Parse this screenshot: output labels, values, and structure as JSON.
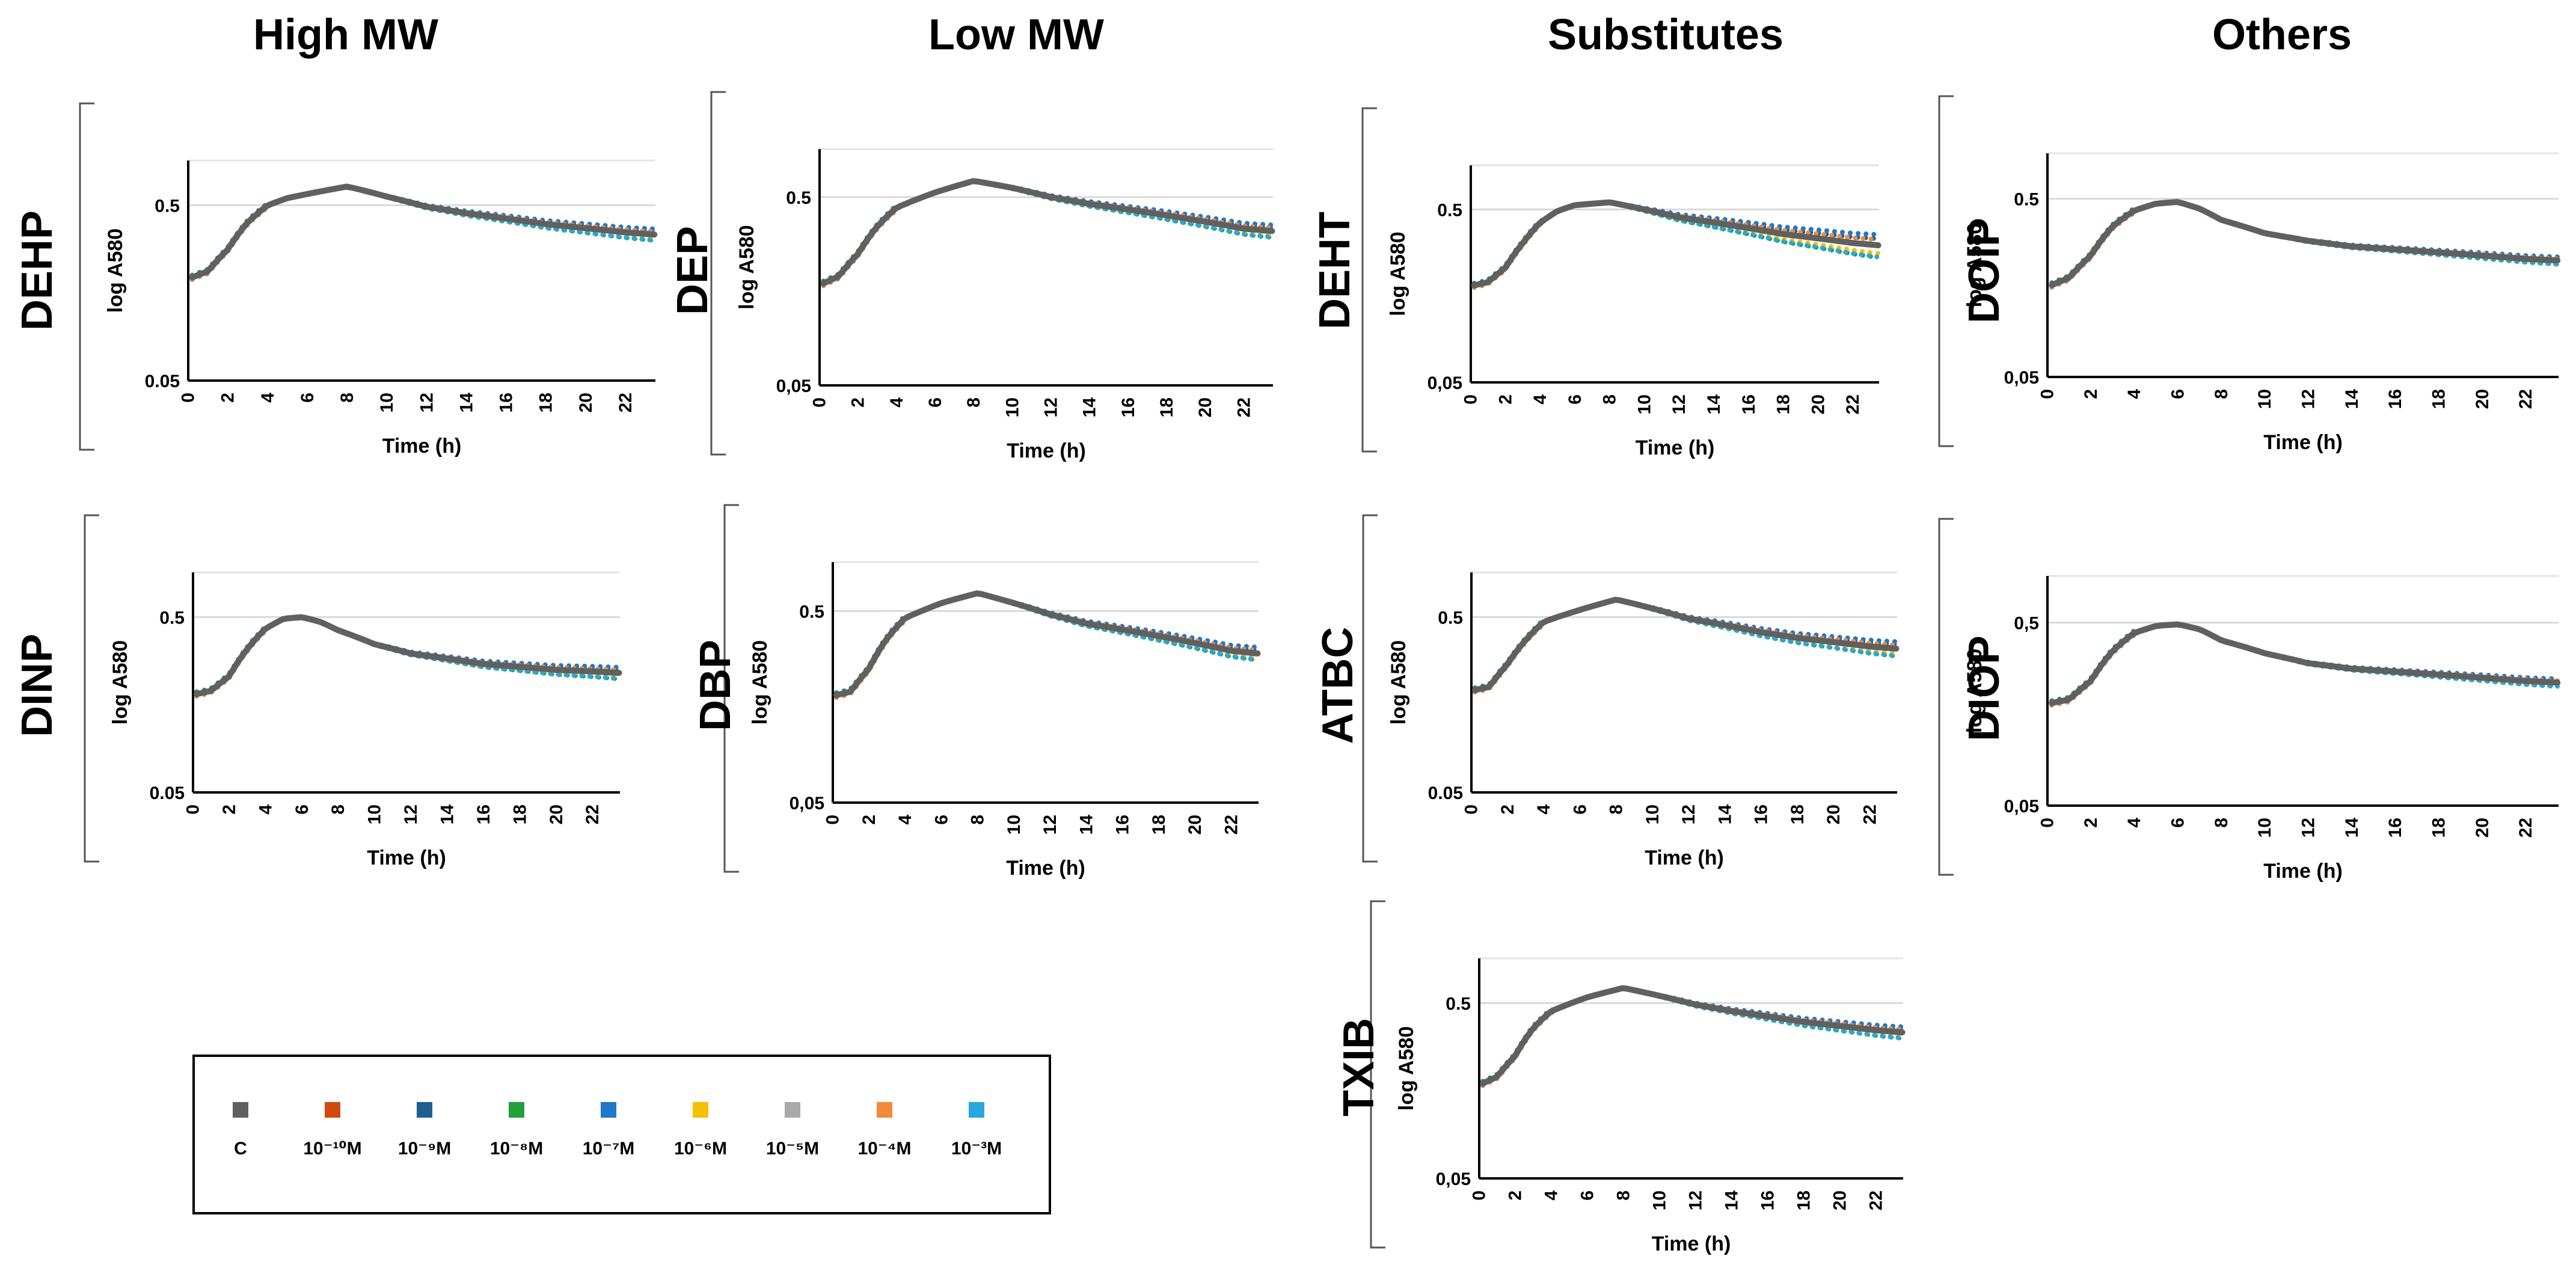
{
  "column_titles": [
    "High MW",
    "Low MW",
    "Substitutes",
    "Others"
  ],
  "legend": {
    "items": [
      {
        "label": "C",
        "color": "#606060"
      },
      {
        "label": "10⁻¹⁰M",
        "color": "#d04a10"
      },
      {
        "label": "10⁻⁹M",
        "color": "#1f5f8f"
      },
      {
        "label": "10⁻⁸M",
        "color": "#22a03c"
      },
      {
        "label": "10⁻⁷M",
        "color": "#1f78c8"
      },
      {
        "label": "10⁻⁶M",
        "color": "#f5c000"
      },
      {
        "label": "10⁻⁵M",
        "color": "#a9a9a9"
      },
      {
        "label": "10⁻⁴M",
        "color": "#f08b3a"
      },
      {
        "label": "10⁻³M",
        "color": "#2aa7e0"
      }
    ]
  },
  "chart_data": [
    {
      "type": "line",
      "name": "DEHP",
      "ylabel": "log A580",
      "xlabel": "Time (h)",
      "xlim": [
        0,
        23.5
      ],
      "xticks": [
        0,
        2,
        4,
        6,
        8,
        10,
        12,
        14,
        16,
        18,
        20,
        22
      ],
      "ylim": [
        0.05,
        0.9
      ],
      "yticks": [
        {
          "v": 0.5,
          "label": "0.5"
        },
        {
          "v": 0.05,
          "label": "0.05"
        }
      ],
      "yscale": "log",
      "curve": [
        [
          0,
          0.19
        ],
        [
          1,
          0.21
        ],
        [
          2,
          0.28
        ],
        [
          3,
          0.4
        ],
        [
          4,
          0.5
        ],
        [
          5,
          0.55
        ],
        [
          6,
          0.58
        ],
        [
          7,
          0.61
        ],
        [
          8,
          0.64
        ],
        [
          10,
          0.56
        ],
        [
          12,
          0.49
        ],
        [
          14,
          0.45
        ],
        [
          16,
          0.42
        ],
        [
          18,
          0.39
        ],
        [
          20,
          0.37
        ],
        [
          22,
          0.35
        ],
        [
          23.5,
          0.34
        ]
      ],
      "spread": 0.08
    },
    {
      "type": "line",
      "name": "DEP",
      "ylabel": "log A580",
      "xlabel": "Time (h)",
      "xlim": [
        0,
        23.5
      ],
      "xticks": [
        0,
        2,
        4,
        6,
        8,
        10,
        12,
        14,
        16,
        18,
        20,
        22
      ],
      "ylim": [
        0.05,
        0.9
      ],
      "yticks": [
        {
          "v": 0.5,
          "label": "0.5"
        },
        {
          "v": 0.05,
          "label": "0,05"
        }
      ],
      "yscale": "log",
      "curve": [
        [
          0,
          0.17
        ],
        [
          1,
          0.19
        ],
        [
          2,
          0.25
        ],
        [
          3,
          0.35
        ],
        [
          4,
          0.44
        ],
        [
          6,
          0.53
        ],
        [
          8,
          0.61
        ],
        [
          10,
          0.56
        ],
        [
          12,
          0.5
        ],
        [
          14,
          0.46
        ],
        [
          16,
          0.43
        ],
        [
          18,
          0.4
        ],
        [
          20,
          0.37
        ],
        [
          22,
          0.34
        ],
        [
          23.5,
          0.33
        ]
      ],
      "spread": 0.08
    },
    {
      "type": "line",
      "name": "DEHT",
      "ylabel": "log A580",
      "xlabel": "Time (h)",
      "xlim": [
        0,
        23.5
      ],
      "xticks": [
        0,
        2,
        4,
        6,
        8,
        10,
        12,
        14,
        16,
        18,
        20,
        22
      ],
      "ylim": [
        0.05,
        0.9
      ],
      "yticks": [
        {
          "v": 0.5,
          "label": "0.5"
        },
        {
          "v": 0.05,
          "label": "0,05"
        }
      ],
      "yscale": "log",
      "curve": [
        [
          0,
          0.18
        ],
        [
          1,
          0.19
        ],
        [
          2,
          0.23
        ],
        [
          3,
          0.32
        ],
        [
          4,
          0.42
        ],
        [
          5,
          0.49
        ],
        [
          6,
          0.53
        ],
        [
          8,
          0.55
        ],
        [
          10,
          0.5
        ],
        [
          12,
          0.45
        ],
        [
          14,
          0.42
        ],
        [
          16,
          0.39
        ],
        [
          18,
          0.36
        ],
        [
          20,
          0.34
        ],
        [
          22,
          0.32
        ],
        [
          23.5,
          0.31
        ]
      ],
      "spread": 0.16
    },
    {
      "type": "line",
      "name": "DOIP",
      "ylabel": "log A580",
      "xlabel": "Time (h)",
      "xlim": [
        0,
        23.5
      ],
      "xticks": [
        0,
        2,
        4,
        6,
        8,
        10,
        12,
        14,
        16,
        18,
        20,
        22
      ],
      "ylim": [
        0.05,
        0.9
      ],
      "yticks": [
        {
          "v": 0.5,
          "label": "0.5"
        },
        {
          "v": 0.05,
          "label": "0,05"
        }
      ],
      "yscale": "log",
      "curve": [
        [
          0,
          0.16
        ],
        [
          1,
          0.18
        ],
        [
          2,
          0.24
        ],
        [
          3,
          0.35
        ],
        [
          4,
          0.43
        ],
        [
          5,
          0.47
        ],
        [
          6,
          0.48
        ],
        [
          7,
          0.44
        ],
        [
          8,
          0.38
        ],
        [
          10,
          0.32
        ],
        [
          12,
          0.29
        ],
        [
          14,
          0.27
        ],
        [
          16,
          0.26
        ],
        [
          18,
          0.25
        ],
        [
          20,
          0.24
        ],
        [
          22,
          0.23
        ],
        [
          23.5,
          0.225
        ]
      ],
      "spread": 0.05
    },
    {
      "type": "line",
      "name": "DINP",
      "ylabel": "log A580",
      "xlabel": "Time (h)",
      "xlim": [
        0,
        23.5
      ],
      "xticks": [
        0,
        2,
        4,
        6,
        8,
        10,
        12,
        14,
        16,
        18,
        20,
        22
      ],
      "ylim": [
        0.05,
        0.9
      ],
      "yticks": [
        {
          "v": 0.5,
          "label": "0.5"
        },
        {
          "v": 0.05,
          "label": "0.05"
        }
      ],
      "yscale": "log",
      "curve": [
        [
          0,
          0.18
        ],
        [
          1,
          0.19
        ],
        [
          2,
          0.23
        ],
        [
          3,
          0.33
        ],
        [
          4,
          0.43
        ],
        [
          5,
          0.49
        ],
        [
          6,
          0.5
        ],
        [
          7,
          0.47
        ],
        [
          8,
          0.42
        ],
        [
          10,
          0.35
        ],
        [
          12,
          0.31
        ],
        [
          14,
          0.29
        ],
        [
          16,
          0.27
        ],
        [
          18,
          0.26
        ],
        [
          20,
          0.25
        ],
        [
          22,
          0.245
        ],
        [
          23.5,
          0.24
        ]
      ],
      "spread": 0.08
    },
    {
      "type": "line",
      "name": "DBP",
      "ylabel": "log A580",
      "xlabel": "Time (h)",
      "xlim": [
        0,
        23.5
      ],
      "xticks": [
        0,
        2,
        4,
        6,
        8,
        10,
        12,
        14,
        16,
        18,
        20,
        22
      ],
      "ylim": [
        0.05,
        0.9
      ],
      "yticks": [
        {
          "v": 0.5,
          "label": "0.5"
        },
        {
          "v": 0.05,
          "label": "0,05"
        }
      ],
      "yscale": "log",
      "curve": [
        [
          0,
          0.18
        ],
        [
          1,
          0.19
        ],
        [
          2,
          0.25
        ],
        [
          3,
          0.36
        ],
        [
          4,
          0.46
        ],
        [
          6,
          0.55
        ],
        [
          8,
          0.62
        ],
        [
          10,
          0.55
        ],
        [
          12,
          0.48
        ],
        [
          14,
          0.43
        ],
        [
          16,
          0.4
        ],
        [
          18,
          0.37
        ],
        [
          20,
          0.34
        ],
        [
          22,
          0.31
        ],
        [
          23.5,
          0.3
        ]
      ],
      "spread": 0.08
    },
    {
      "type": "line",
      "name": "ATBC",
      "ylabel": "log A580",
      "xlabel": "Time (h)",
      "xlim": [
        0,
        23.5
      ],
      "xticks": [
        0,
        2,
        4,
        6,
        8,
        10,
        12,
        14,
        16,
        18,
        20,
        22
      ],
      "ylim": [
        0.05,
        0.9
      ],
      "yticks": [
        {
          "v": 0.5,
          "label": "0.5"
        },
        {
          "v": 0.05,
          "label": "0.05"
        }
      ],
      "yscale": "log",
      "curve": [
        [
          0,
          0.19
        ],
        [
          1,
          0.2
        ],
        [
          2,
          0.27
        ],
        [
          3,
          0.37
        ],
        [
          4,
          0.47
        ],
        [
          6,
          0.55
        ],
        [
          8,
          0.63
        ],
        [
          10,
          0.56
        ],
        [
          12,
          0.49
        ],
        [
          14,
          0.45
        ],
        [
          16,
          0.41
        ],
        [
          18,
          0.38
        ],
        [
          20,
          0.36
        ],
        [
          22,
          0.34
        ],
        [
          23.5,
          0.33
        ]
      ],
      "spread": 0.1
    },
    {
      "type": "line",
      "name": "DIOP",
      "ylabel": "log A580",
      "xlabel": "Time (h)",
      "xlim": [
        0,
        23.5
      ],
      "xticks": [
        0,
        2,
        4,
        6,
        8,
        10,
        12,
        14,
        16,
        18,
        20,
        22
      ],
      "ylim": [
        0.05,
        0.9
      ],
      "yticks": [
        {
          "v": 0.5,
          "label": "0,5"
        },
        {
          "v": 0.05,
          "label": "0,05"
        }
      ],
      "yscale": "log",
      "curve": [
        [
          0,
          0.18
        ],
        [
          1,
          0.19
        ],
        [
          2,
          0.24
        ],
        [
          3,
          0.35
        ],
        [
          4,
          0.44
        ],
        [
          5,
          0.48
        ],
        [
          6,
          0.49
        ],
        [
          7,
          0.46
        ],
        [
          8,
          0.4
        ],
        [
          10,
          0.34
        ],
        [
          12,
          0.3
        ],
        [
          14,
          0.28
        ],
        [
          16,
          0.27
        ],
        [
          18,
          0.26
        ],
        [
          20,
          0.25
        ],
        [
          22,
          0.24
        ],
        [
          23.5,
          0.235
        ]
      ],
      "spread": 0.05
    },
    {
      "type": "line",
      "name": "TXIB",
      "ylabel": "log A580",
      "xlabel": "Time (h)",
      "xlim": [
        0,
        23.5
      ],
      "xticks": [
        0,
        2,
        4,
        6,
        8,
        10,
        12,
        14,
        16,
        18,
        20,
        22
      ],
      "ylim": [
        0.05,
        0.9
      ],
      "yticks": [
        {
          "v": 0.5,
          "label": "0.5"
        },
        {
          "v": 0.05,
          "label": "0,05"
        }
      ],
      "yscale": "log",
      "curve": [
        [
          0,
          0.17
        ],
        [
          1,
          0.19
        ],
        [
          2,
          0.25
        ],
        [
          3,
          0.36
        ],
        [
          4,
          0.45
        ],
        [
          6,
          0.54
        ],
        [
          8,
          0.61
        ],
        [
          10,
          0.55
        ],
        [
          12,
          0.49
        ],
        [
          14,
          0.45
        ],
        [
          16,
          0.42
        ],
        [
          18,
          0.39
        ],
        [
          20,
          0.37
        ],
        [
          22,
          0.35
        ],
        [
          23.5,
          0.34
        ]
      ],
      "spread": 0.08
    }
  ]
}
